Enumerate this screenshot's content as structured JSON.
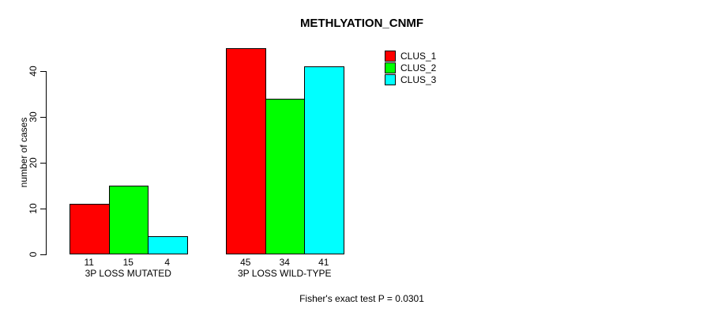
{
  "title": "METHLYATION_CNMF",
  "footer": "Fisher's exact test P = 0.0301",
  "y_axis": {
    "label": "number of cases",
    "ticks": [
      0,
      10,
      20,
      30,
      40
    ]
  },
  "legend": [
    {
      "label": "CLUS_1",
      "color": "#ff0000"
    },
    {
      "label": "CLUS_2",
      "color": "#00ff00"
    },
    {
      "label": "CLUS_3",
      "color": "#00ffff"
    }
  ],
  "chart_data": {
    "type": "bar",
    "title": "METHLYATION_CNMF",
    "xlabel": "",
    "ylabel": "number of cases",
    "ylim": [
      0,
      45
    ],
    "grid": false,
    "legend_position": "top-right",
    "categories": [
      "3P LOSS MUTATED",
      "3P LOSS WILD-TYPE"
    ],
    "series": [
      {
        "name": "CLUS_1",
        "color": "#ff0000",
        "values": [
          11,
          45
        ]
      },
      {
        "name": "CLUS_2",
        "color": "#00ff00",
        "values": [
          15,
          34
        ]
      },
      {
        "name": "CLUS_3",
        "color": "#00ffff",
        "values": [
          4,
          41
        ]
      }
    ],
    "bar_value_labels": [
      [
        11,
        15,
        4
      ],
      [
        45,
        34,
        41
      ]
    ],
    "annotation": "Fisher's exact test P = 0.0301"
  }
}
